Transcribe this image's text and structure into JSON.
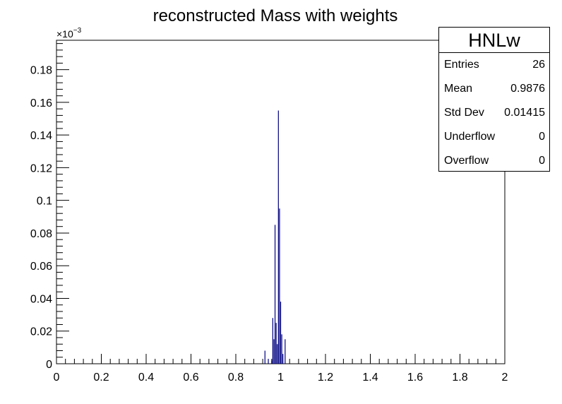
{
  "chart_data": {
    "type": "bar",
    "title": "reconstructed Mass with weights",
    "xlabel": "",
    "ylabel": "",
    "xlim": [
      0,
      2
    ],
    "ylim": [
      0,
      0.000198
    ],
    "y_exponent_label": "×10",
    "y_exponent_power": "−3",
    "x_ticks": [
      "0",
      "0.2",
      "0.4",
      "0.6",
      "0.8",
      "1",
      "1.2",
      "1.4",
      "1.6",
      "1.8",
      "2"
    ],
    "y_ticks": [
      "0",
      "0.02",
      "0.04",
      "0.06",
      "0.08",
      "0.1",
      "0.12",
      "0.14",
      "0.16",
      "0.18"
    ],
    "bar_color": "#000080",
    "series": [
      {
        "x": [
          0.93,
          0.945,
          0.96,
          0.965,
          0.97,
          0.975,
          0.98,
          0.985,
          0.99,
          0.995,
          1.0,
          1.005,
          1.01,
          1.02
        ],
        "values": [
          8e-06,
          3e-06,
          2e-06,
          2.8e-05,
          1.5e-05,
          8.5e-05,
          2.5e-05,
          1.2e-05,
          0.000155,
          9.5e-05,
          3.8e-05,
          1.8e-05,
          6e-06,
          1.5e-05
        ]
      }
    ]
  },
  "stats": {
    "title": "HNLw",
    "rows": [
      {
        "label": "Entries",
        "value": "26"
      },
      {
        "label": "Mean",
        "value": "0.9876"
      },
      {
        "label": "Std Dev",
        "value": "0.01415"
      },
      {
        "label": "Underflow",
        "value": "0"
      },
      {
        "label": "Overflow",
        "value": "0"
      }
    ]
  }
}
